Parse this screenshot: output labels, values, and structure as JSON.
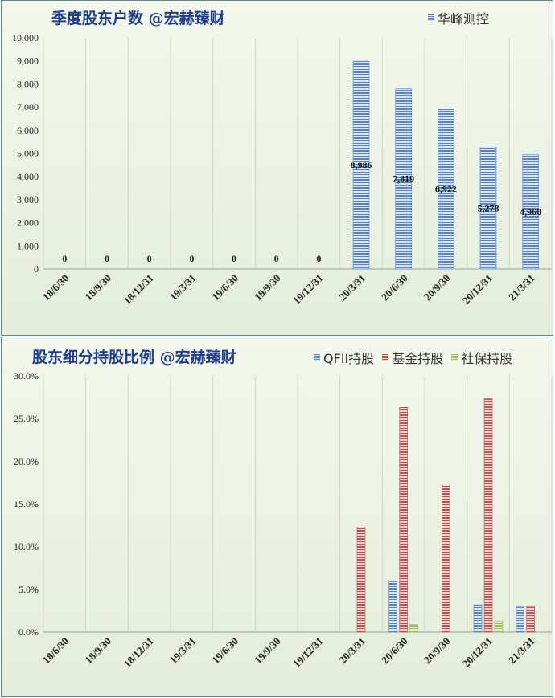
{
  "colors": {
    "blue": "#5b84c8",
    "red": "#c0504d",
    "green": "#9bbb59",
    "title": "#1f3d8f",
    "grid": "#d0d6c8",
    "panel_border": "#5a8a9a"
  },
  "chart1": {
    "title": "季度股东户数 @宏赫臻财",
    "legend": [
      "华峰测控"
    ]
  },
  "chart2": {
    "title": "股东细分持股比例 @宏赫臻财",
    "legend": [
      "QFII持股",
      "基金持股",
      "社保持股"
    ]
  },
  "chart_data": [
    {
      "type": "bar",
      "title": "季度股东户数 @宏赫臻财",
      "categories": [
        "18/6/30",
        "18/9/30",
        "18/12/31",
        "19/3/31",
        "19/6/30",
        "19/9/30",
        "19/12/31",
        "20/3/31",
        "20/6/30",
        "20/9/30",
        "20/12/31",
        "21/3/31"
      ],
      "series": [
        {
          "name": "华峰测控",
          "values": [
            0,
            0,
            0,
            0,
            0,
            0,
            0,
            8986,
            7819,
            6922,
            5278,
            4960
          ],
          "labels": [
            "0",
            "0",
            "0",
            "0",
            "0",
            "0",
            "0",
            "8,986",
            "7,819",
            "6,922",
            "5,278",
            "4,960"
          ]
        }
      ],
      "ylim": [
        0,
        10000
      ],
      "yticks": [
        "0",
        "1,000",
        "2,000",
        "3,000",
        "4,000",
        "5,000",
        "6,000",
        "7,000",
        "8,000",
        "9,000",
        "10,000"
      ],
      "grid": "vertical",
      "legend_position": "top-right"
    },
    {
      "type": "bar",
      "title": "股东细分持股比例 @宏赫臻财",
      "categories": [
        "18/6/30",
        "18/9/30",
        "18/12/31",
        "19/3/31",
        "19/6/30",
        "19/9/30",
        "19/12/31",
        "20/3/31",
        "20/6/30",
        "20/9/30",
        "20/12/31",
        "21/3/31"
      ],
      "series": [
        {
          "name": "QFII持股",
          "values": [
            0,
            0,
            0,
            0,
            0,
            0,
            0,
            0,
            5.9,
            0,
            3.2,
            3.0
          ]
        },
        {
          "name": "基金持股",
          "values": [
            0,
            0,
            0,
            0,
            0,
            0,
            0,
            12.3,
            26.3,
            17.2,
            27.4,
            3.0
          ]
        },
        {
          "name": "社保持股",
          "values": [
            0,
            0,
            0,
            0,
            0,
            0,
            0,
            0,
            0.9,
            0,
            1.3,
            0
          ]
        }
      ],
      "ylim": [
        0,
        30
      ],
      "yticks": [
        "0.0%",
        "5.0%",
        "10.0%",
        "15.0%",
        "20.0%",
        "25.0%",
        "30.0%"
      ],
      "grid": "vertical",
      "legend_position": "top-right"
    }
  ]
}
